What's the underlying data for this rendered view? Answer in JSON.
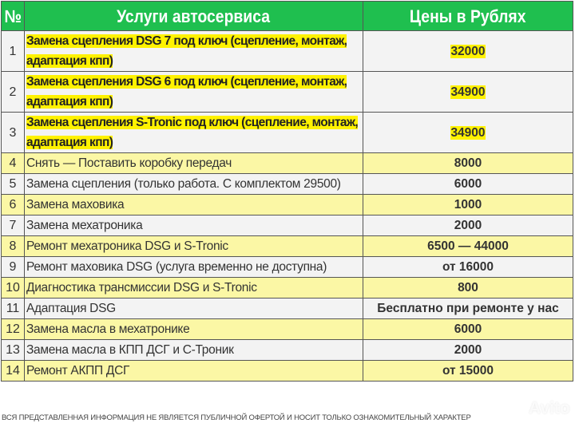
{
  "header": {
    "num": "№",
    "service": "Услуги автосервиса",
    "price": "Цены в Рублях"
  },
  "colors": {
    "header_bg": "#1fbf4f",
    "row_yellow": "#fbf7a5",
    "row_gray": "#f3f3f3",
    "highlight": "#fff200"
  },
  "rows": [
    {
      "num": "1",
      "service": "Замена сцепления DSG 7 под ключ (сцепление, монтаж, адаптация кпп)",
      "price": "32000",
      "style": "g",
      "highlight": true
    },
    {
      "num": "2",
      "service": "Замена сцепления DSG 6 под ключ (сцепление, монтаж, адаптация кпп)",
      "price": "34900",
      "style": "g",
      "highlight": true
    },
    {
      "num": "3",
      "service": "Замена сцепления S-Tronic под ключ (сцепление, монтаж, адаптация кпп)",
      "price": "34900",
      "style": "g",
      "highlight": true
    },
    {
      "num": "4",
      "service": "Снять — Поставить коробку передач",
      "price": "8000",
      "style": "y",
      "highlight": false
    },
    {
      "num": "5",
      "service": "Замена сцепления (только работа. С комплектом 29500)",
      "price": "6000",
      "style": "g",
      "highlight": false
    },
    {
      "num": "6",
      "service": "Замена маховика",
      "price": "1000",
      "style": "y",
      "highlight": false
    },
    {
      "num": "7",
      "service": "Замена мехатроника",
      "price": "2000",
      "style": "g",
      "highlight": false
    },
    {
      "num": "8",
      "service": "Ремонт мехатроника DSG и S-Tronic",
      "price": "6500 — 44000",
      "style": "y",
      "highlight": false
    },
    {
      "num": "9",
      "service": "Ремонт маховика DSG (услуга временно не доступна)",
      "price": "от 16000",
      "style": "g",
      "highlight": false
    },
    {
      "num": "10",
      "service": "Диагностика трансмиссии DSG и S-Tronic",
      "price": "800",
      "style": "y",
      "highlight": false
    },
    {
      "num": "11",
      "service": "Адаптация DSG",
      "price": "Бесплатно при ремонте у нас",
      "style": "g",
      "highlight": false
    },
    {
      "num": "12",
      "service": "Замена масла в мехатронике",
      "price": "6000",
      "style": "y",
      "highlight": false
    },
    {
      "num": "13",
      "service": "Замена масла в КПП ДСГ и С-Троник",
      "price": "2000",
      "style": "g",
      "highlight": false
    },
    {
      "num": "14",
      "service": "Ремонт АКПП ДСГ",
      "price": "от 15000",
      "style": "y",
      "highlight": false
    }
  ],
  "footer": "ВСЯ ПРЕДСТАВЛЕННАЯ ИНФОРМАЦИЯ НЕ ЯВЛЯЕТСЯ ПУБЛИЧНОЙ ОФЕРТОЙ И НОСИТ ТОЛЬКО ОЗНАКОМИТЕЛЬНЫЙ ХАРАКТЕР",
  "watermark": "Avito"
}
